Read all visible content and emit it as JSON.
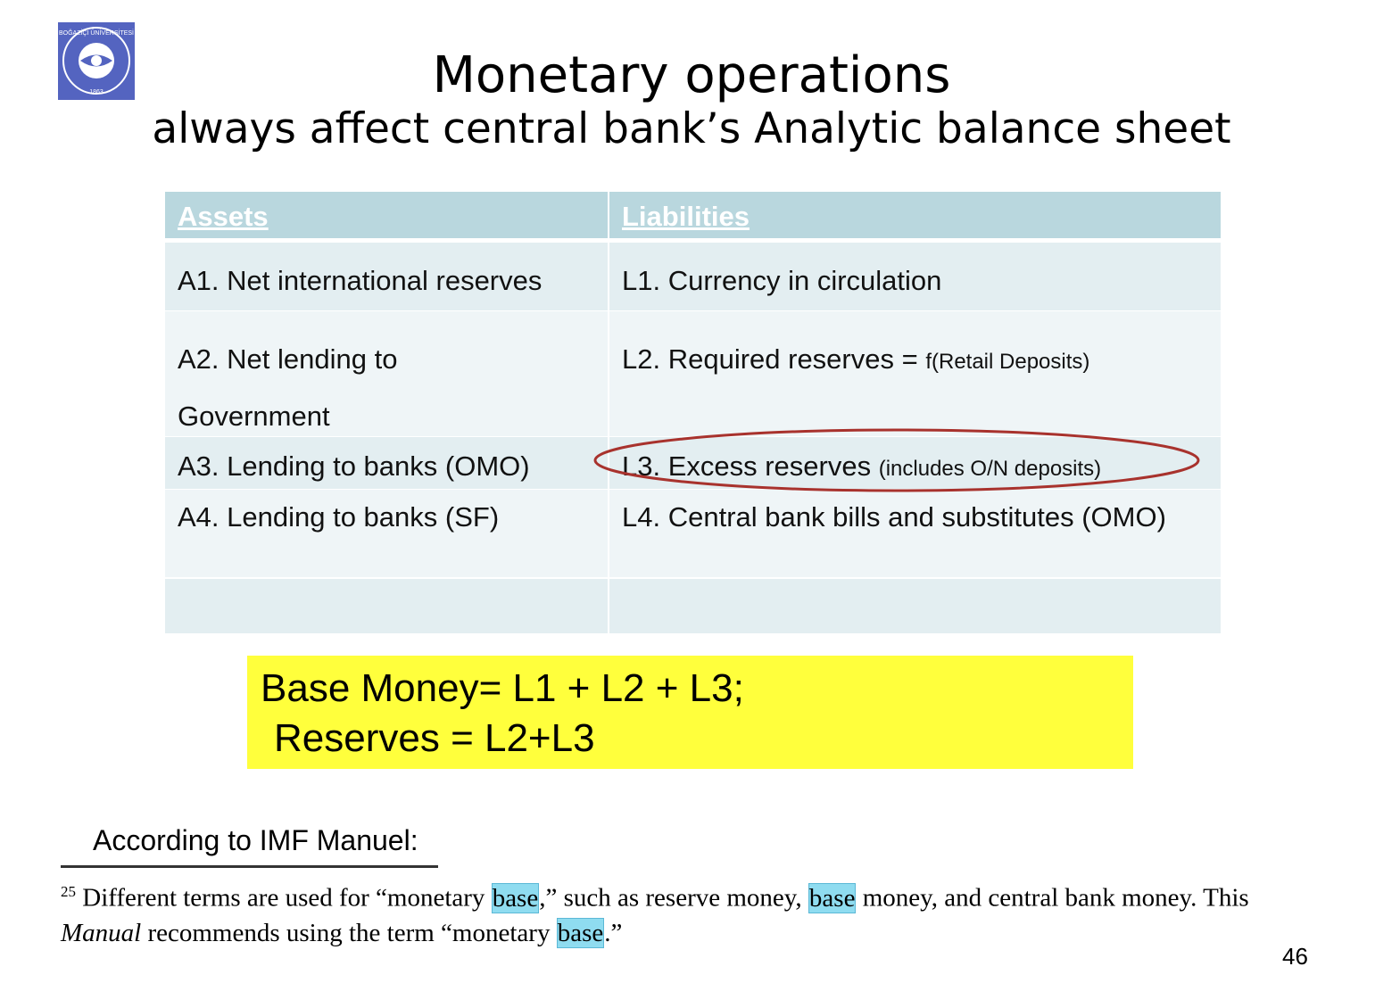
{
  "logo": {
    "name": "BOĞAZİÇİ ÜNİVERSİTESİ",
    "year": "1863"
  },
  "header": {
    "title": "Monetary operations",
    "subtitle": "always affect central bank’s Analytic balance sheet"
  },
  "table": {
    "columns": [
      "Assets",
      "Liabilities"
    ],
    "rows": [
      [
        "A1. Net international reserves",
        "L1. Currency in circulation"
      ],
      [
        "A2. Net lending to Government",
        [
          "L2. Required reserves = ",
          "f(Retail Deposits)"
        ]
      ],
      [
        "A3. Lending to banks (OMO)",
        [
          "L3. Excess reserves ",
          "(includes O/N deposits)"
        ]
      ],
      [
        "A4. Lending to banks (SF)",
        "L4. Central bank bills and substitutes (OMO)"
      ]
    ]
  },
  "box": {
    "lines": [
      "Base Money= L1 + L2 + L3;",
      "Reserves = L2+L3"
    ]
  },
  "note": {
    "heading": "According to IMF Manuel:"
  },
  "footnote": {
    "number": "25",
    "line1": [
      "Different terms are used for “monetary ",
      "base",
      ",” such as reserve money, ",
      "base",
      " money, and central bank money. This"
    ],
    "line2": [
      "Manual",
      " recommends using the term “monetary ",
      "base",
      ".”"
    ]
  },
  "page_number": "46"
}
